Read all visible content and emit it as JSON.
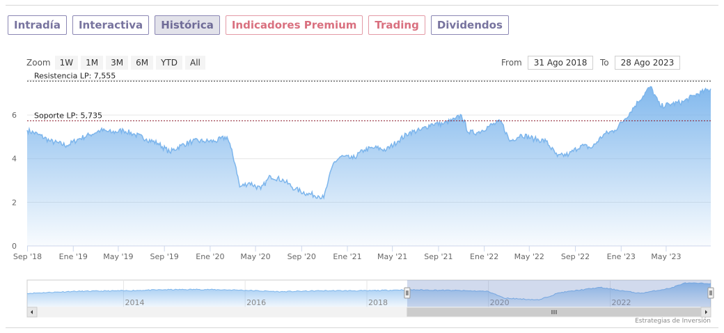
{
  "tabs": [
    {
      "label": "Intradía",
      "state": "normal"
    },
    {
      "label": "Interactiva",
      "state": "normal"
    },
    {
      "label": "Histórica",
      "state": "active"
    },
    {
      "label": "Indicadores Premium",
      "state": "premium"
    },
    {
      "label": "Trading",
      "state": "premium"
    },
    {
      "label": "Dividendos",
      "state": "normal"
    }
  ],
  "zoom": {
    "label": "Zoom",
    "options": [
      "1W",
      "1M",
      "3M",
      "6M",
      "YTD",
      "All"
    ]
  },
  "range": {
    "from_label": "From",
    "from_value": "31 Ago 2018",
    "to_label": "To",
    "to_value": "28 Ago 2023"
  },
  "credit": "Estrategias de Inversión",
  "colors": {
    "series": "#7cb5ec",
    "tab_border": "#8b87b4",
    "tab_text": "#77739e",
    "premium": "#d9707f",
    "resistance": "#333333",
    "support": "#8b1a2a"
  },
  "chart_data": {
    "type": "area",
    "ylim": [
      0,
      7.6
    ],
    "yticks": [
      0,
      2,
      4,
      6
    ],
    "x_range": [
      "2018-08-31",
      "2023-08-28"
    ],
    "x_ticks": [
      {
        "label": "Sep '18",
        "date": "2018-09-01"
      },
      {
        "label": "Ene '19",
        "date": "2019-01-01"
      },
      {
        "label": "May '19",
        "date": "2019-05-01"
      },
      {
        "label": "Sep '19",
        "date": "2019-09-01"
      },
      {
        "label": "Ene '20",
        "date": "2020-01-01"
      },
      {
        "label": "May '20",
        "date": "2020-05-01"
      },
      {
        "label": "Sep '20",
        "date": "2020-09-01"
      },
      {
        "label": "Ene '21",
        "date": "2021-01-01"
      },
      {
        "label": "May '21",
        "date": "2021-05-01"
      },
      {
        "label": "Sep '21",
        "date": "2021-09-01"
      },
      {
        "label": "Ene '22",
        "date": "2022-01-01"
      },
      {
        "label": "May '22",
        "date": "2022-05-01"
      },
      {
        "label": "Sep '22",
        "date": "2022-09-01"
      },
      {
        "label": "Ene '23",
        "date": "2023-01-01"
      },
      {
        "label": "May '23",
        "date": "2023-05-01"
      }
    ],
    "series": [
      {
        "points": [
          [
            "2018-08-31",
            5.3
          ],
          [
            "2018-10-01",
            5.1
          ],
          [
            "2018-11-01",
            4.8
          ],
          [
            "2018-12-15",
            4.6
          ],
          [
            "2019-01-15",
            4.9
          ],
          [
            "2019-02-15",
            5.1
          ],
          [
            "2019-03-15",
            5.3
          ],
          [
            "2019-04-15",
            5.2
          ],
          [
            "2019-05-15",
            5.3
          ],
          [
            "2019-06-15",
            5.1
          ],
          [
            "2019-07-15",
            4.9
          ],
          [
            "2019-08-15",
            4.7
          ],
          [
            "2019-09-15",
            4.3
          ],
          [
            "2019-10-15",
            4.6
          ],
          [
            "2019-11-15",
            4.8
          ],
          [
            "2019-12-15",
            4.8
          ],
          [
            "2020-01-15",
            4.8
          ],
          [
            "2020-02-15",
            5.0
          ],
          [
            "2020-02-25",
            4.5
          ],
          [
            "2020-03-10",
            3.6
          ],
          [
            "2020-03-20",
            2.7
          ],
          [
            "2020-04-15",
            2.9
          ],
          [
            "2020-05-15",
            2.6
          ],
          [
            "2020-06-10",
            3.2
          ],
          [
            "2020-07-15",
            3.0
          ],
          [
            "2020-08-15",
            2.6
          ],
          [
            "2020-09-15",
            2.4
          ],
          [
            "2020-10-15",
            2.3
          ],
          [
            "2020-10-30",
            2.2
          ],
          [
            "2020-11-10",
            2.9
          ],
          [
            "2020-11-25",
            3.8
          ],
          [
            "2020-12-15",
            4.1
          ],
          [
            "2021-01-15",
            4.0
          ],
          [
            "2021-02-15",
            4.4
          ],
          [
            "2021-03-15",
            4.5
          ],
          [
            "2021-04-15",
            4.4
          ],
          [
            "2021-05-15",
            4.8
          ],
          [
            "2021-06-15",
            5.2
          ],
          [
            "2021-07-15",
            5.3
          ],
          [
            "2021-08-15",
            5.6
          ],
          [
            "2021-09-15",
            5.6
          ],
          [
            "2021-10-15",
            5.8
          ],
          [
            "2021-11-01",
            6.0
          ],
          [
            "2021-11-20",
            5.2
          ],
          [
            "2021-12-15",
            5.2
          ],
          [
            "2022-01-15",
            5.5
          ],
          [
            "2022-02-15",
            5.7
          ],
          [
            "2022-03-10",
            4.8
          ],
          [
            "2022-04-10",
            5.1
          ],
          [
            "2022-05-15",
            4.9
          ],
          [
            "2022-06-15",
            4.8
          ],
          [
            "2022-07-15",
            4.1
          ],
          [
            "2022-08-15",
            4.2
          ],
          [
            "2022-09-15",
            4.6
          ],
          [
            "2022-10-15",
            4.5
          ],
          [
            "2022-11-15",
            5.1
          ],
          [
            "2022-12-15",
            5.3
          ],
          [
            "2023-01-10",
            5.8
          ],
          [
            "2023-02-15",
            6.6
          ],
          [
            "2023-03-20",
            7.3
          ],
          [
            "2023-04-15",
            6.4
          ],
          [
            "2023-05-15",
            6.5
          ],
          [
            "2023-06-15",
            6.6
          ],
          [
            "2023-07-15",
            6.9
          ],
          [
            "2023-08-28",
            7.2
          ]
        ]
      }
    ],
    "plot_bands": [
      {
        "label": "Resistencia LP: 7,555",
        "value": 7.555,
        "style": "dashed",
        "color": "#333333"
      },
      {
        "label": "Soporte LP: 5,735",
        "value": 5.735,
        "style": "dashed",
        "color": "#8b1a2a"
      }
    ],
    "navigator": {
      "x_range": [
        "2012-06-01",
        "2023-08-28"
      ],
      "selected": [
        "2018-08-31",
        "2023-08-28"
      ],
      "x_ticks": [
        {
          "label": "2014",
          "date": "2014-01-01"
        },
        {
          "label": "2016",
          "date": "2016-01-01"
        },
        {
          "label": "2018",
          "date": "2018-01-01"
        },
        {
          "label": "2020",
          "date": "2020-01-01"
        },
        {
          "label": "2022",
          "date": "2022-01-01"
        }
      ],
      "points": [
        [
          "2012-06-01",
          4.2
        ],
        [
          "2013-03-01",
          4.8
        ],
        [
          "2014-01-01",
          5.0
        ],
        [
          "2014-09-01",
          5.3
        ],
        [
          "2015-04-01",
          5.4
        ],
        [
          "2015-12-01",
          5.2
        ],
        [
          "2016-08-01",
          4.7
        ],
        [
          "2017-04-01",
          5.0
        ],
        [
          "2018-01-01",
          5.0
        ],
        [
          "2018-08-31",
          5.3
        ],
        [
          "2019-06-01",
          5.1
        ],
        [
          "2020-01-01",
          4.8
        ],
        [
          "2020-04-01",
          2.8
        ],
        [
          "2020-10-30",
          2.2
        ],
        [
          "2021-03-01",
          4.4
        ],
        [
          "2021-11-01",
          6.0
        ],
        [
          "2022-07-01",
          4.2
        ],
        [
          "2023-01-01",
          5.8
        ],
        [
          "2023-03-20",
          7.3
        ],
        [
          "2023-08-28",
          7.2
        ]
      ]
    }
  }
}
